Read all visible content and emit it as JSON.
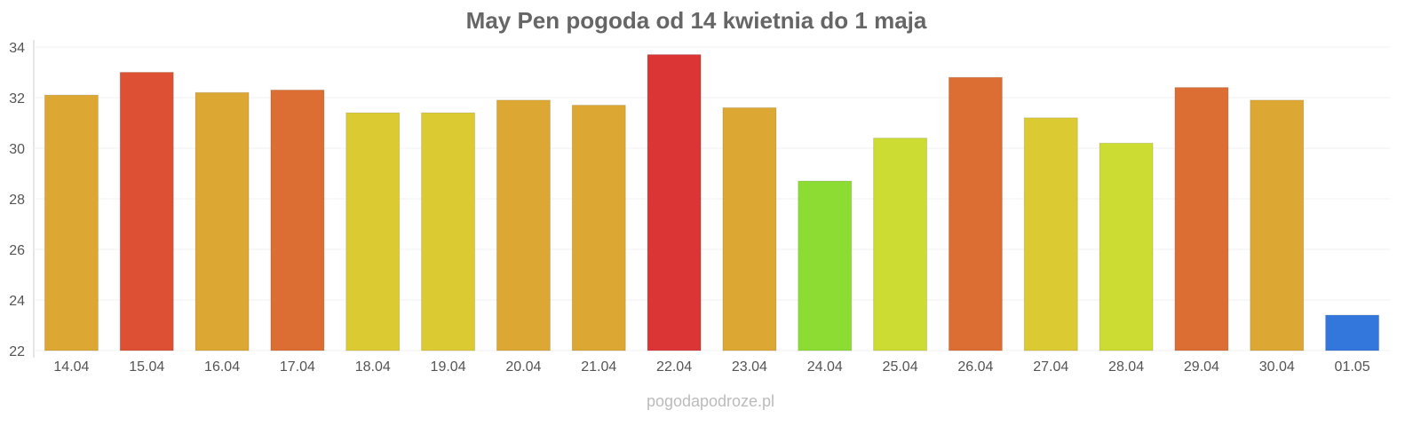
{
  "chart_data": {
    "type": "bar",
    "title": "May Pen pogoda od 14 kwietnia do 1 maja",
    "categories": [
      "14.04",
      "15.04",
      "16.04",
      "17.04",
      "18.04",
      "19.04",
      "20.04",
      "21.04",
      "22.04",
      "23.04",
      "24.04",
      "25.04",
      "26.04",
      "27.04",
      "28.04",
      "29.04",
      "30.04",
      "01.05"
    ],
    "values": [
      32.1,
      33.0,
      32.2,
      32.3,
      31.4,
      31.4,
      31.9,
      31.7,
      33.7,
      31.6,
      28.7,
      30.4,
      32.8,
      31.2,
      30.2,
      32.4,
      31.9,
      23.4
    ],
    "colors": [
      "#dca833",
      "#dd5034",
      "#dca833",
      "#dd6e33",
      "#dcca33",
      "#dcca33",
      "#dca833",
      "#dca833",
      "#dc3535",
      "#dca833",
      "#8ddc33",
      "#cddc33",
      "#dd6e33",
      "#dcca33",
      "#cddc33",
      "#dd6e33",
      "#dca833",
      "#3377dd"
    ],
    "ylim": [
      22,
      34
    ],
    "yticks": [
      22,
      24,
      26,
      28,
      30,
      32,
      34
    ],
    "grid": true,
    "xlabel": "",
    "ylabel": ""
  },
  "credit": "pogodapodroze.pl"
}
